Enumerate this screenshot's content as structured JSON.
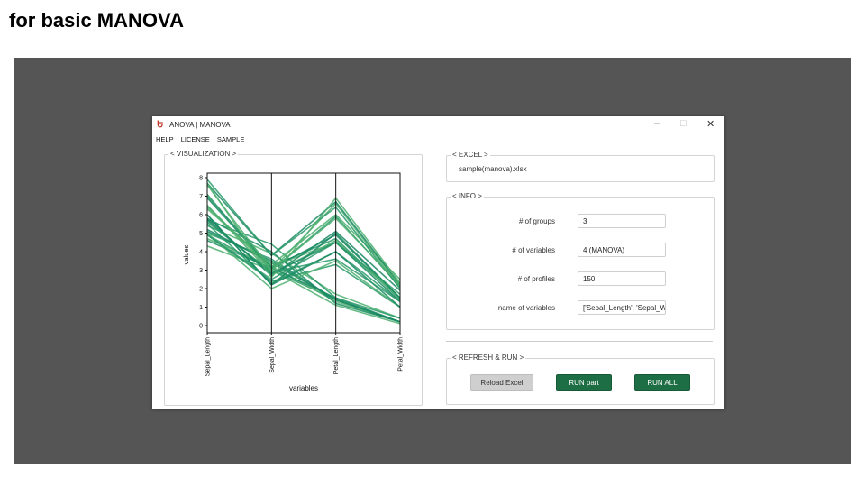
{
  "slide": {
    "title": "for basic MANOVA"
  },
  "window": {
    "icon": "Ե",
    "title": "ANOVA | MANOVA",
    "controls": {
      "minimize": "–",
      "maximize": "□",
      "close": "✕"
    }
  },
  "menu": {
    "items": [
      "HELP",
      "LICENSE",
      "SAMPLE"
    ]
  },
  "visualization": {
    "label": "< VISUALIZATION >"
  },
  "excel": {
    "label": "< EXCEL >",
    "file": "sample(manova).xlsx"
  },
  "info": {
    "label": "< INFO >",
    "rows": [
      {
        "label": "# of groups",
        "value": "3"
      },
      {
        "label": "# of variables",
        "value": "4 (MANOVA)"
      },
      {
        "label": "# of profiles",
        "value": "150"
      },
      {
        "label": "name of variables",
        "value": "['Sepal_Length', 'Sepal_Width', 'Petal_Length', 'Petal_Width']"
      }
    ]
  },
  "run": {
    "label": "< REFRESH & RUN >",
    "reload_label": "Reload Excel",
    "run_part_label": "RUN part",
    "run_all_label": "RUN ALL"
  },
  "chart_data": {
    "type": "line",
    "chart_kind": "parallel-coordinates",
    "categories": [
      "Sepal_Length",
      "Sepal_Width",
      "Petal_Length",
      "Petal_Width"
    ],
    "xlabel": "variables",
    "ylabel": "values",
    "ylim": [
      0,
      8
    ],
    "yticks": [
      0,
      1,
      2,
      3,
      4,
      5,
      6,
      7,
      8
    ],
    "grid": false,
    "legend": "none",
    "colors": [
      "#1a8a63",
      "#2a9a6a",
      "#4caf6e"
    ],
    "series": [
      {
        "values": [
          5.1,
          3.5,
          1.4,
          0.2
        ]
      },
      {
        "values": [
          4.9,
          3.0,
          1.4,
          0.2
        ]
      },
      {
        "values": [
          4.7,
          3.2,
          1.3,
          0.2
        ]
      },
      {
        "values": [
          4.6,
          3.1,
          1.5,
          0.2
        ]
      },
      {
        "values": [
          5.0,
          3.6,
          1.4,
          0.2
        ]
      },
      {
        "values": [
          5.4,
          3.9,
          1.7,
          0.4
        ]
      },
      {
        "values": [
          5.8,
          4.0,
          1.2,
          0.2
        ]
      },
      {
        "values": [
          5.7,
          4.4,
          1.5,
          0.4
        ]
      },
      {
        "values": [
          4.3,
          3.0,
          1.1,
          0.1
        ]
      },
      {
        "values": [
          5.2,
          3.4,
          1.4,
          0.2
        ]
      },
      {
        "values": [
          7.0,
          3.2,
          4.7,
          1.4
        ]
      },
      {
        "values": [
          6.4,
          3.2,
          4.5,
          1.5
        ]
      },
      {
        "values": [
          6.9,
          3.1,
          4.9,
          1.5
        ]
      },
      {
        "values": [
          5.5,
          2.3,
          4.0,
          1.3
        ]
      },
      {
        "values": [
          6.5,
          2.8,
          4.6,
          1.5
        ]
      },
      {
        "values": [
          5.7,
          2.8,
          4.5,
          1.3
        ]
      },
      {
        "values": [
          4.9,
          2.4,
          3.3,
          1.0
        ]
      },
      {
        "values": [
          5.0,
          2.0,
          3.5,
          1.0
        ]
      },
      {
        "values": [
          6.0,
          2.2,
          4.0,
          1.0
        ]
      },
      {
        "values": [
          5.6,
          2.9,
          3.6,
          1.3
        ]
      },
      {
        "values": [
          6.3,
          3.3,
          6.0,
          2.5
        ]
      },
      {
        "values": [
          5.8,
          2.7,
          5.1,
          1.9
        ]
      },
      {
        "values": [
          7.1,
          3.0,
          5.9,
          2.1
        ]
      },
      {
        "values": [
          7.6,
          3.0,
          6.6,
          2.1
        ]
      },
      {
        "values": [
          7.7,
          3.8,
          6.7,
          2.2
        ]
      },
      {
        "values": [
          7.9,
          3.8,
          6.4,
          2.0
        ]
      },
      {
        "values": [
          7.7,
          2.6,
          6.9,
          2.3
        ]
      },
      {
        "values": [
          6.0,
          2.2,
          5.0,
          1.5
        ]
      },
      {
        "values": [
          4.9,
          2.5,
          4.5,
          1.7
        ]
      },
      {
        "values": [
          6.5,
          3.0,
          5.8,
          2.2
        ]
      }
    ]
  }
}
